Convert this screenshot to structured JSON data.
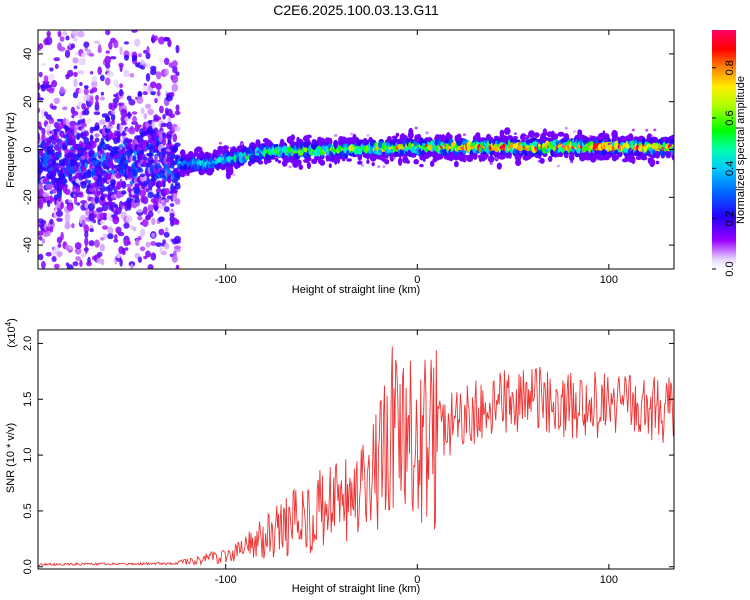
{
  "title": "C2E6.2025.100.03.13.G11",
  "chart_data": [
    {
      "type": "heatmap",
      "xlabel": "Height of straight line (km)",
      "ylabel": "Frequency (Hz)",
      "xlim": [
        -198,
        134
      ],
      "ylim": [
        -50,
        50
      ],
      "xticks": [
        -100,
        0,
        100
      ],
      "yticks": [
        -40,
        -20,
        0,
        20,
        40
      ],
      "colorbar": {
        "label": "Normalized spectral amplitude",
        "range": [
          0.0,
          0.95
        ],
        "ticks": [
          0.0,
          0.2,
          0.4,
          0.6,
          0.8
        ]
      },
      "description": {
        "noise_region_x": [
          -198,
          -125
        ],
        "signal_center_freq_hz": [
          {
            "x": -110,
            "y": -6
          },
          {
            "x": -80,
            "y": -1
          },
          {
            "x": -40,
            "y": 0
          },
          {
            "x": 0,
            "y": 1
          },
          {
            "x": 130,
            "y": 1
          }
        ],
        "peak_amplitude_region_x": [
          0,
          134
        ]
      }
    },
    {
      "type": "line",
      "xlabel": "Height of straight line (km)",
      "ylabel": "SNR (10 * v/v)",
      "yscale_label": "(x10",
      "yscale_exp": "4",
      "yscale_close": ")",
      "xlim": [
        -198,
        134
      ],
      "ylim": [
        -0.02,
        2.12
      ],
      "xticks": [
        -100,
        0,
        100
      ],
      "yticks": [
        "0.0",
        "0.5",
        "1.0",
        "1.5",
        "2.0"
      ],
      "color": "#ee3333",
      "envelope": [
        {
          "x": -198,
          "y": 0.02
        },
        {
          "x": -125,
          "y": 0.03
        },
        {
          "x": -100,
          "y": 0.1
        },
        {
          "x": -80,
          "y": 0.25
        },
        {
          "x": -60,
          "y": 0.45
        },
        {
          "x": -40,
          "y": 0.55
        },
        {
          "x": -25,
          "y": 0.65
        },
        {
          "x": -15,
          "y": 1.15
        },
        {
          "x": 0,
          "y": 1.05
        },
        {
          "x": 20,
          "y": 1.3
        },
        {
          "x": 40,
          "y": 1.45
        },
        {
          "x": 60,
          "y": 1.5
        },
        {
          "x": 80,
          "y": 1.45
        },
        {
          "x": 100,
          "y": 1.45
        },
        {
          "x": 134,
          "y": 1.4
        }
      ]
    }
  ]
}
